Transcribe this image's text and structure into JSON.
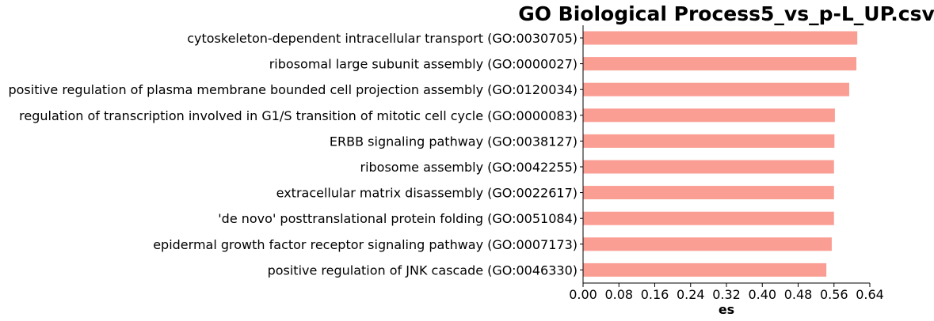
{
  "chart_data": {
    "type": "bar",
    "orientation": "horizontal",
    "title": "GO Biological Process5_vs_p-L_UP.csv",
    "xlabel": "es",
    "ylabel": "",
    "xlim": [
      0,
      0.64
    ],
    "xticks": [
      "0.00",
      "0.08",
      "0.16",
      "0.24",
      "0.32",
      "0.40",
      "0.48",
      "0.56",
      "0.64"
    ],
    "bar_color": "#fa9e94",
    "grid": false,
    "categories": [
      "cytoskeleton-dependent intracellular transport (GO:0030705)",
      "ribosomal large subunit assembly (GO:0000027)",
      "positive regulation of plasma membrane bounded cell projection assembly (GO:0120034)",
      "regulation of transcription involved in G1/S transition of mitotic cell cycle (GO:0000083)",
      "ERBB signaling pathway (GO:0038127)",
      "ribosome assembly (GO:0042255)",
      "extracellular matrix disassembly (GO:0022617)",
      "'de novo' posttranslational protein folding (GO:0051084)",
      "epidermal growth factor receptor signaling pathway (GO:0007173)",
      "positive regulation of JNK cascade (GO:0046330)"
    ],
    "values": [
      0.612,
      0.61,
      0.594,
      0.562,
      0.561,
      0.56,
      0.56,
      0.56,
      0.555,
      0.543
    ]
  }
}
